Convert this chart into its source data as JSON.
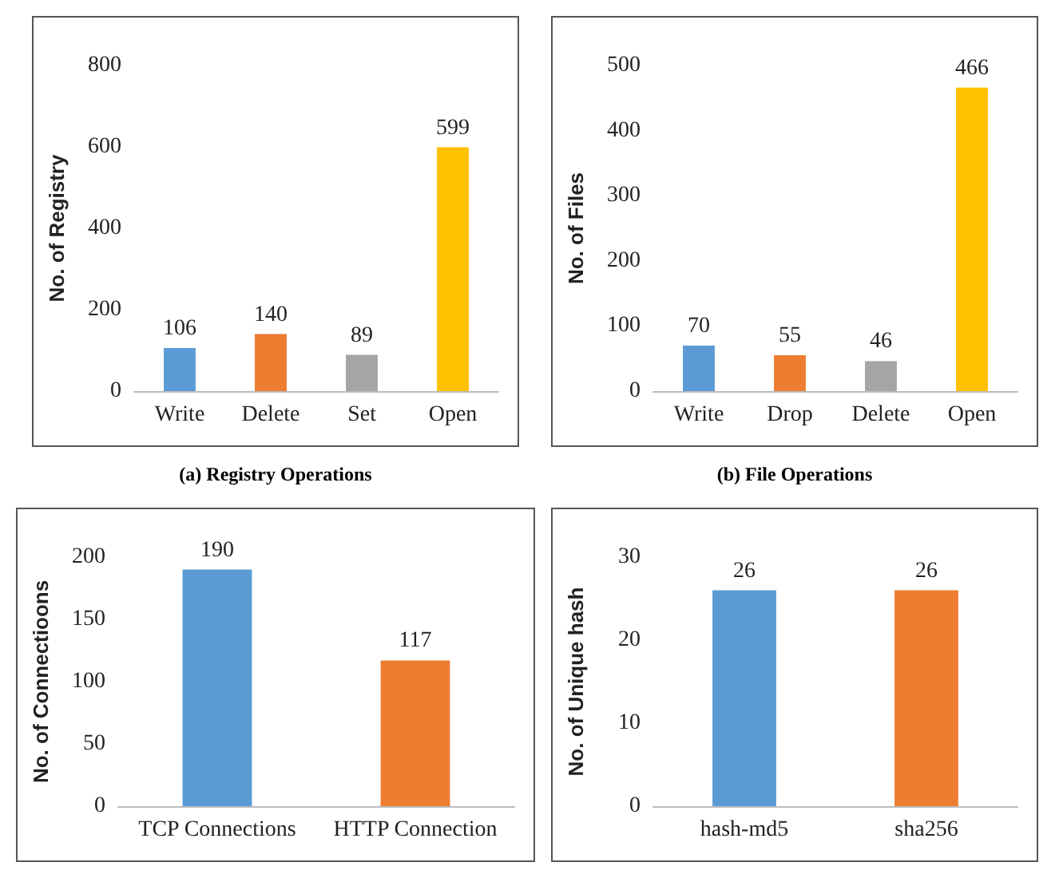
{
  "chart_data": [
    {
      "type": "bar",
      "title": "(a) Registry Operations",
      "ylabel": "No. of Registry",
      "categories": [
        "Write",
        "Delete",
        "Set",
        "Open"
      ],
      "values": [
        106,
        140,
        89,
        599
      ],
      "colors": [
        "#5b9bd5",
        "#ed7d31",
        "#a5a5a5",
        "#ffc000"
      ],
      "ylim": [
        0,
        800
      ],
      "yticks": [
        0,
        200,
        400,
        600,
        800
      ],
      "data_labels": true,
      "grid": false
    },
    {
      "type": "bar",
      "title": "(b) File Operations",
      "ylabel": "No. of Files",
      "categories": [
        "Write",
        "Drop",
        "Delete",
        "Open"
      ],
      "values": [
        70,
        55,
        46,
        466
      ],
      "colors": [
        "#5b9bd5",
        "#ed7d31",
        "#a5a5a5",
        "#ffc000"
      ],
      "ylim": [
        0,
        500
      ],
      "yticks": [
        0,
        100,
        200,
        300,
        400,
        500
      ],
      "data_labels": true,
      "grid": false
    },
    {
      "type": "bar",
      "ylabel": "No. of Connectioons",
      "categories": [
        "TCP Connections",
        "HTTP Connection"
      ],
      "values": [
        190,
        117
      ],
      "colors": [
        "#5b9bd5",
        "#ed7d31"
      ],
      "ylim": [
        0,
        200
      ],
      "yticks": [
        0,
        50,
        100,
        150,
        200
      ],
      "data_labels": true,
      "grid": false
    },
    {
      "type": "bar",
      "ylabel": "No. of Unique hash",
      "categories": [
        "hash-md5",
        "sha256"
      ],
      "values": [
        26,
        26
      ],
      "colors": [
        "#5b9bd5",
        "#ed7d31"
      ],
      "ylim": [
        0,
        30
      ],
      "yticks": [
        0,
        10,
        20,
        30
      ],
      "data_labels": true,
      "grid": false
    }
  ]
}
